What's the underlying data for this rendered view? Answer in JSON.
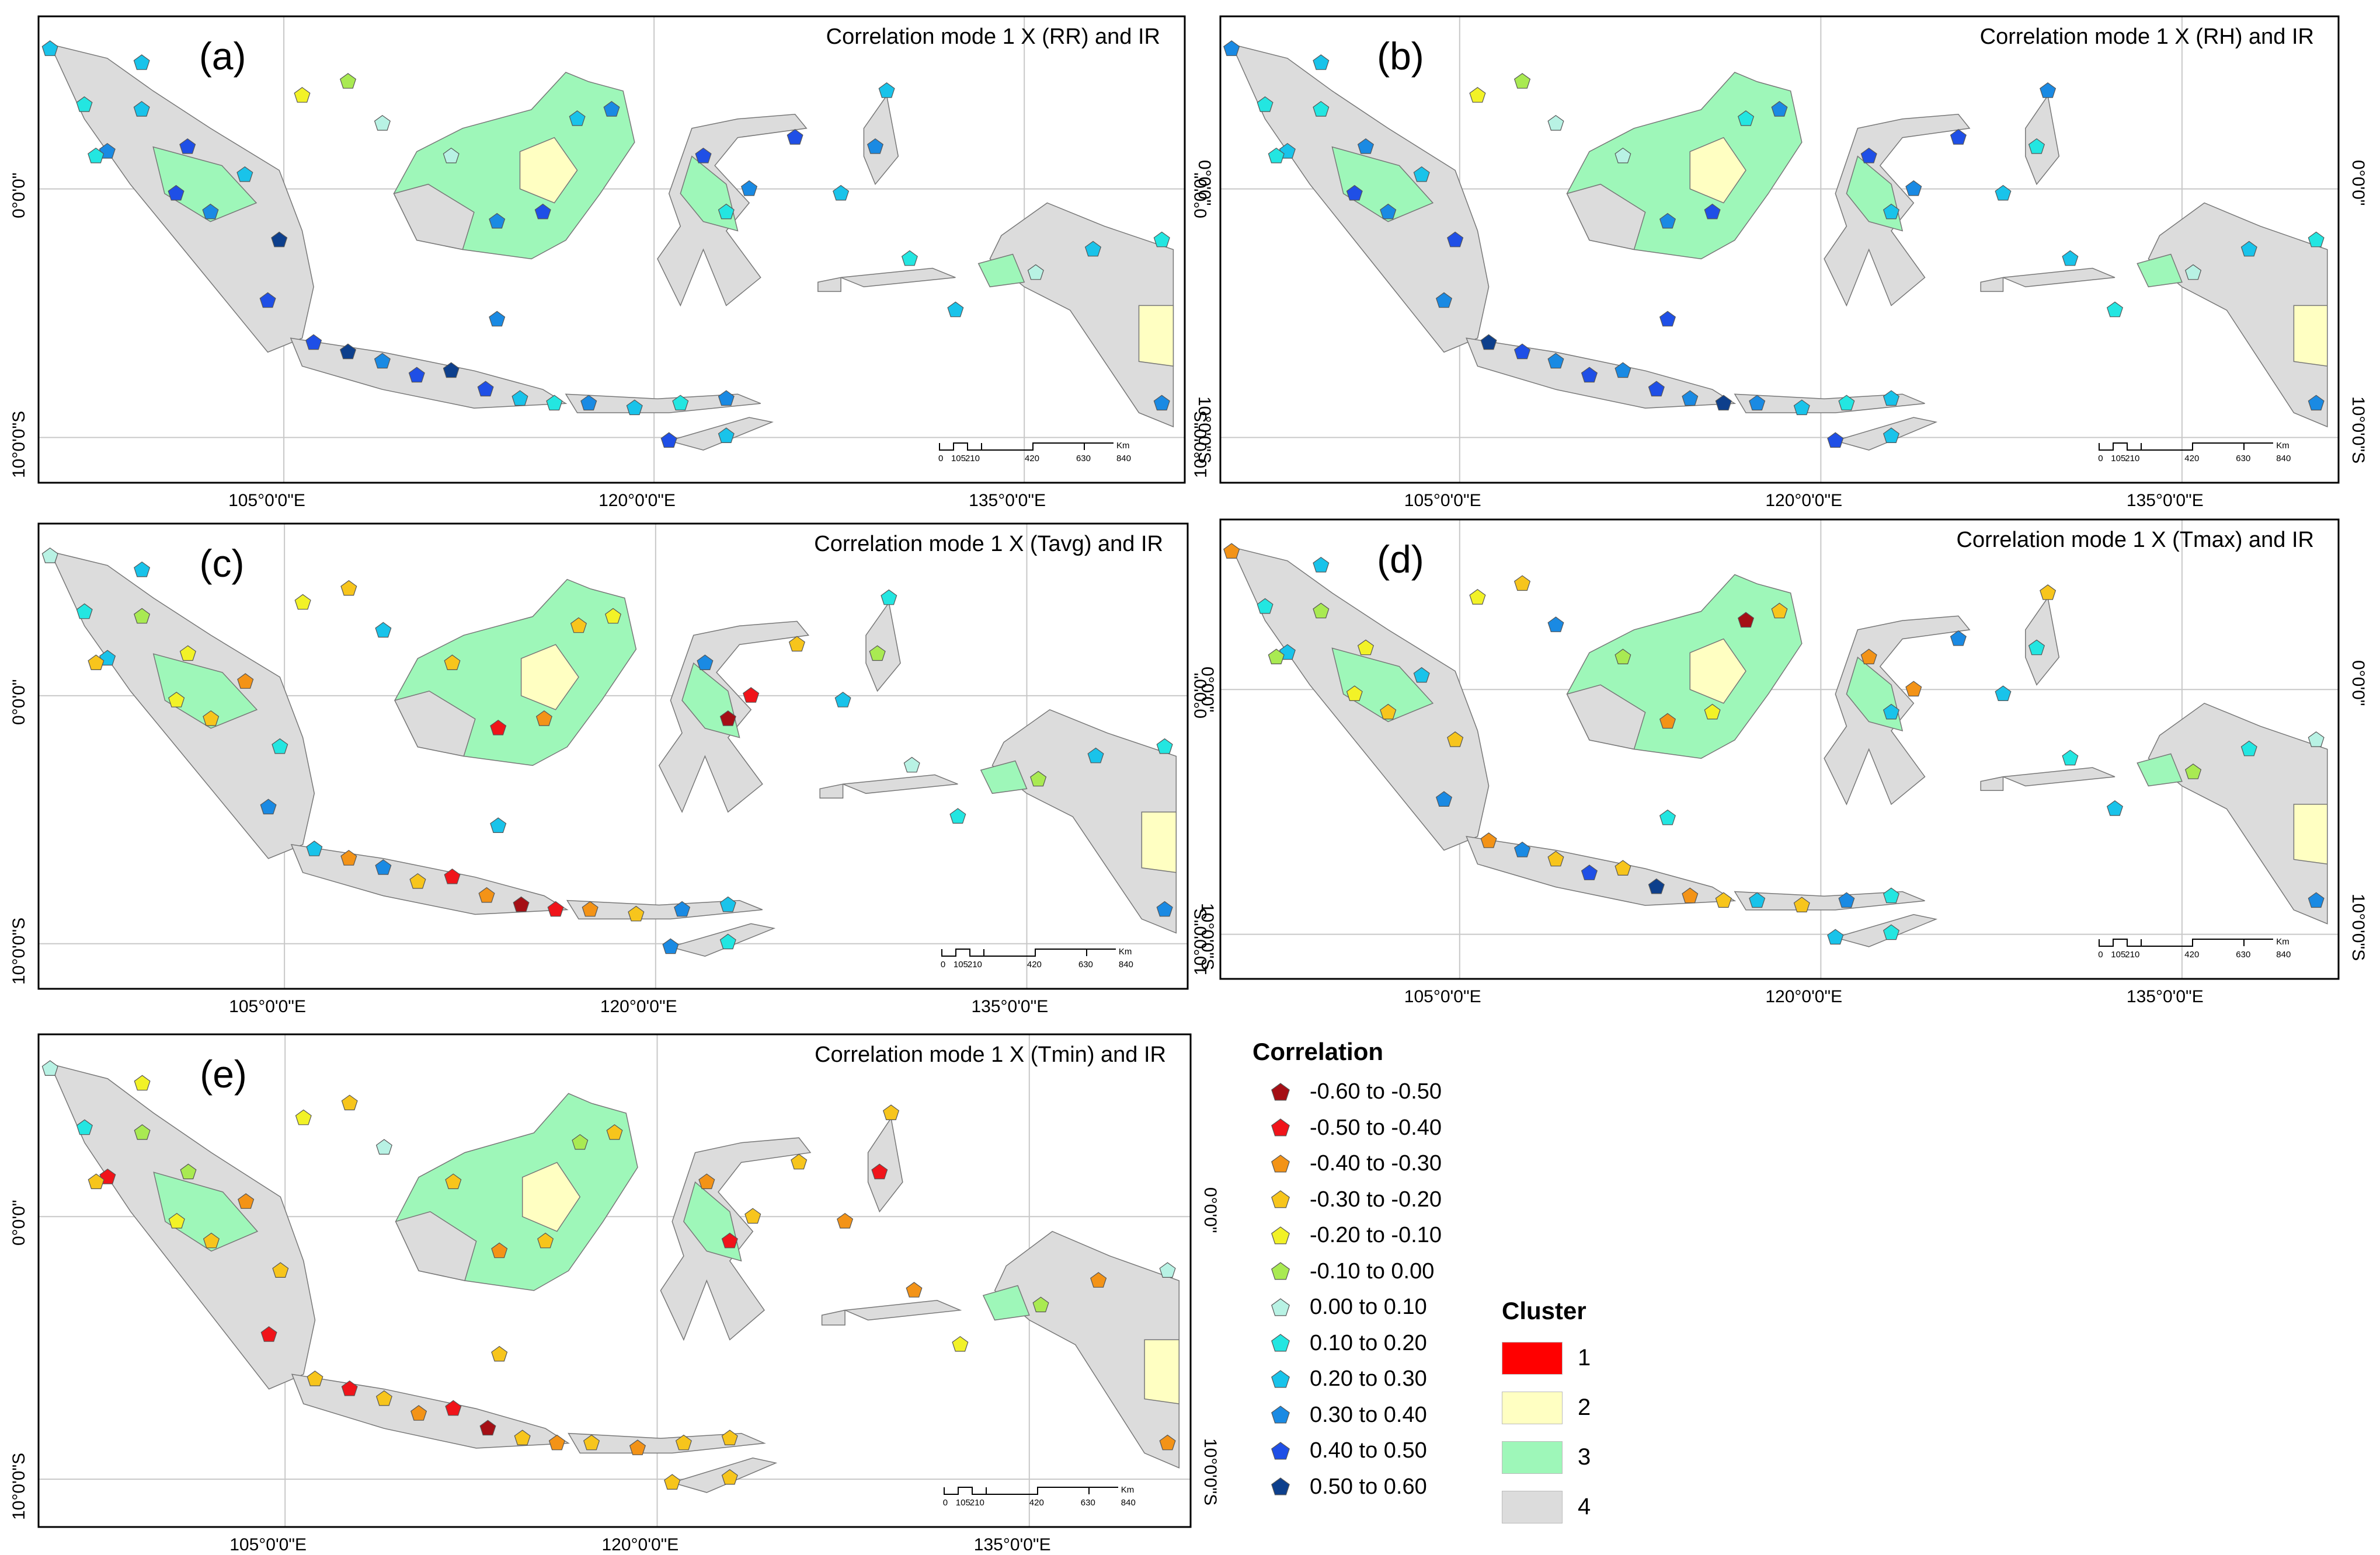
{
  "panels": [
    {
      "label": "(a)",
      "title": "Correlation mode 1 X (RR) and IR"
    },
    {
      "label": "(b)",
      "title": "Correlation mode 1 X (RH) and IR"
    },
    {
      "label": "(c)",
      "title": "Correlation mode 1 X (Tavg) and IR"
    },
    {
      "label": "(d)",
      "title": "Correlation mode 1 X (Tmax) and IR"
    },
    {
      "label": "(e)",
      "title": "Correlation mode 1 X (Tmin) and IR"
    }
  ],
  "axes": {
    "lon_labels": [
      "105°0'0\"E",
      "120°0'0\"E",
      "135°0'0\"E"
    ],
    "lat_labels": [
      "0°0'0\"",
      "10°0'0\"S"
    ]
  },
  "scale": {
    "ticks": [
      "0",
      "105",
      "210",
      "420",
      "630",
      "840"
    ],
    "unit": "Km"
  },
  "correlation_legend": {
    "title": "Correlation",
    "items": [
      {
        "label": "-0.60 to -0.50",
        "color": "#a50f15"
      },
      {
        "label": "-0.50 to -0.40",
        "color": "#f0141a"
      },
      {
        "label": "-0.40 to -0.30",
        "color": "#f39317"
      },
      {
        "label": "-0.30 to -0.20",
        "color": "#f7c51c"
      },
      {
        "label": "-0.20 to -0.10",
        "color": "#f2f227"
      },
      {
        "label": "-0.10 to 0.00",
        "color": "#a9ea52"
      },
      {
        "label": "0.00 to 0.10",
        "color": "#b8f2e4"
      },
      {
        "label": "0.10 to 0.20",
        "color": "#23e6e1"
      },
      {
        "label": "0.20 to 0.30",
        "color": "#19c3ea"
      },
      {
        "label": "0.30 to 0.40",
        "color": "#1a8ae3"
      },
      {
        "label": "0.40 to 0.50",
        "color": "#1f4fe6"
      },
      {
        "label": "0.50 to 0.60",
        "color": "#0d3f8c"
      }
    ]
  },
  "cluster_legend": {
    "title": "Cluster",
    "items": [
      {
        "label": "1",
        "color": "#ff0000"
      },
      {
        "label": "2",
        "color": "#ffffc2"
      },
      {
        "label": "3",
        "color": "#9ef7b9"
      },
      {
        "label": "4",
        "color": "#dcdcdc"
      }
    ]
  }
}
